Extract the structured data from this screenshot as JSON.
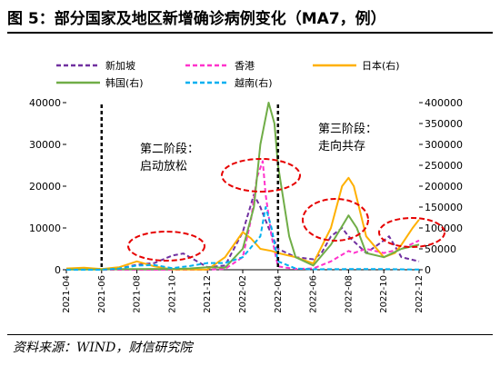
{
  "figure": {
    "title": "图 5：部分国家及地区新增确诊病例变化（MA7，例）",
    "source": "资料来源：WIND，财信研究院"
  },
  "chart_data": {
    "type": "line",
    "title": "部分国家及地区新增确诊病例变化（MA7，例）",
    "x_ticks": [
      "2021-04",
      "2021-06",
      "2021-08",
      "2021-10",
      "2021-12",
      "2022-02",
      "2022-04",
      "2022-06",
      "2022-08",
      "2022-10",
      "2022-12"
    ],
    "x_range": [
      "2021-04",
      "2022-12"
    ],
    "y_left": {
      "ticks": [
        0,
        10000,
        20000,
        30000,
        40000
      ],
      "ylim": [
        0,
        40000
      ]
    },
    "y_right": {
      "ticks": [
        0,
        50000,
        100000,
        150000,
        200000,
        250000,
        300000,
        350000,
        400000
      ],
      "ylim": [
        0,
        400000
      ]
    },
    "legend": {
      "placement": "top",
      "labels": [
        "新加坡",
        "香港",
        "日本(右)",
        "韩国(右)",
        "越南(右)"
      ]
    },
    "series": [
      {
        "name": "新加坡",
        "axis": "left",
        "color": "#7030A0",
        "dash": "dashed",
        "points": [
          [
            "2021-04",
            0
          ],
          [
            "2021-05",
            50
          ],
          [
            "2021-06",
            200
          ],
          [
            "2021-07",
            300
          ],
          [
            "2021-08",
            1200
          ],
          [
            "2021-09",
            1600
          ],
          [
            "2021-10",
            3400
          ],
          [
            "2021-10-20",
            3900
          ],
          [
            "2021-11",
            3000
          ],
          [
            "2021-12",
            600
          ],
          [
            "2022-01",
            1000
          ],
          [
            "2022-02",
            9000
          ],
          [
            "2022-02-20",
            18000
          ],
          [
            "2022-03",
            15000
          ],
          [
            "2022-03-15",
            10000
          ],
          [
            "2022-04",
            5000
          ],
          [
            "2022-05",
            3000
          ],
          [
            "2022-06",
            2500
          ],
          [
            "2022-06-15",
            4000
          ],
          [
            "2022-07",
            8000
          ],
          [
            "2022-07-20",
            10000
          ],
          [
            "2022-08",
            8000
          ],
          [
            "2022-09",
            4000
          ],
          [
            "2022-10",
            7000
          ],
          [
            "2022-10-10",
            8000
          ],
          [
            "2022-11",
            3000
          ],
          [
            "2022-12",
            2000
          ]
        ]
      },
      {
        "name": "香港",
        "axis": "left",
        "color": "#FF33CC",
        "dash": "dashed",
        "points": [
          [
            "2021-04",
            0
          ],
          [
            "2021-12",
            0
          ],
          [
            "2022-01",
            200
          ],
          [
            "2022-02",
            3000
          ],
          [
            "2022-02-15",
            12000
          ],
          [
            "2022-02-25",
            22000
          ],
          [
            "2022-03-05",
            26000
          ],
          [
            "2022-03-10",
            18000
          ],
          [
            "2022-03-20",
            8000
          ],
          [
            "2022-04",
            800
          ],
          [
            "2022-04-15",
            500
          ],
          [
            "2022-05",
            200
          ],
          [
            "2022-06",
            300
          ],
          [
            "2022-07",
            2000
          ],
          [
            "2022-08",
            4500
          ],
          [
            "2022-08-10",
            4000
          ],
          [
            "2022-09",
            5000
          ],
          [
            "2022-10",
            4000
          ],
          [
            "2022-11",
            5000
          ],
          [
            "2022-12",
            7000
          ]
        ]
      },
      {
        "name": "日本(右)",
        "axis": "right",
        "color": "#FFB000",
        "dash": "solid",
        "points": [
          [
            "2021-04",
            3000
          ],
          [
            "2021-05",
            5000
          ],
          [
            "2021-06",
            1500
          ],
          [
            "2021-07",
            6000
          ],
          [
            "2021-08",
            20000
          ],
          [
            "2021-09",
            8000
          ],
          [
            "2021-10",
            800
          ],
          [
            "2021-12",
            200
          ],
          [
            "2022-01",
            30000
          ],
          [
            "2022-02",
            90000
          ],
          [
            "2022-02-15",
            75000
          ],
          [
            "2022-03",
            50000
          ],
          [
            "2022-03-20",
            45000
          ],
          [
            "2022-04",
            40000
          ],
          [
            "2022-05",
            30000
          ],
          [
            "2022-06",
            15000
          ],
          [
            "2022-07",
            100000
          ],
          [
            "2022-07-20",
            200000
          ],
          [
            "2022-08",
            220000
          ],
          [
            "2022-08-10",
            200000
          ],
          [
            "2022-09",
            80000
          ],
          [
            "2022-10",
            30000
          ],
          [
            "2022-10-20",
            40000
          ],
          [
            "2022-11",
            60000
          ],
          [
            "2022-11-20",
            100000
          ],
          [
            "2022-12",
            120000
          ]
        ]
      },
      {
        "name": "韩国(右)",
        "axis": "right",
        "color": "#70AD47",
        "dash": "solid",
        "points": [
          [
            "2021-04",
            500
          ],
          [
            "2021-06",
            500
          ],
          [
            "2021-07",
            1500
          ],
          [
            "2021-08",
            1800
          ],
          [
            "2021-09",
            2000
          ],
          [
            "2021-10",
            2000
          ],
          [
            "2021-11",
            3000
          ],
          [
            "2021-12",
            6000
          ],
          [
            "2022-01",
            5000
          ],
          [
            "2022-02",
            50000
          ],
          [
            "2022-02-20",
            150000
          ],
          [
            "2022-03",
            300000
          ],
          [
            "2022-03-15",
            400000
          ],
          [
            "2022-03-25",
            350000
          ],
          [
            "2022-04",
            250000
          ],
          [
            "2022-04-20",
            80000
          ],
          [
            "2022-05",
            30000
          ],
          [
            "2022-06",
            10000
          ],
          [
            "2022-07",
            60000
          ],
          [
            "2022-08",
            130000
          ],
          [
            "2022-08-15",
            100000
          ],
          [
            "2022-09",
            40000
          ],
          [
            "2022-10",
            30000
          ],
          [
            "2022-11",
            50000
          ],
          [
            "2022-12",
            60000
          ]
        ]
      },
      {
        "name": "越南(右)",
        "axis": "right",
        "color": "#00B0F0",
        "dash": "dashed",
        "points": [
          [
            "2021-04",
            0
          ],
          [
            "2021-06",
            100
          ],
          [
            "2021-07",
            3000
          ],
          [
            "2021-08",
            10000
          ],
          [
            "2021-09",
            11000
          ],
          [
            "2021-10",
            4000
          ],
          [
            "2021-11",
            9000
          ],
          [
            "2021-12",
            16000
          ],
          [
            "2022-01",
            16000
          ],
          [
            "2022-02",
            30000
          ],
          [
            "2022-03",
            80000
          ],
          [
            "2022-03-10",
            150000
          ],
          [
            "2022-03-20",
            100000
          ],
          [
            "2022-04",
            20000
          ],
          [
            "2022-05",
            3000
          ],
          [
            "2022-06",
            1000
          ],
          [
            "2022-08",
            1500
          ],
          [
            "2022-10",
            1500
          ],
          [
            "2022-12",
            500
          ]
        ]
      }
    ],
    "vertical_markers": [
      "2021-06",
      "2022-04"
    ],
    "annotations": [
      {
        "text_lines": [
          "第二阶段：",
          "启动放松"
        ]
      },
      {
        "text_lines": [
          "第三阶段：",
          "走向共存"
        ]
      }
    ],
    "highlight_ellipses": 4
  }
}
